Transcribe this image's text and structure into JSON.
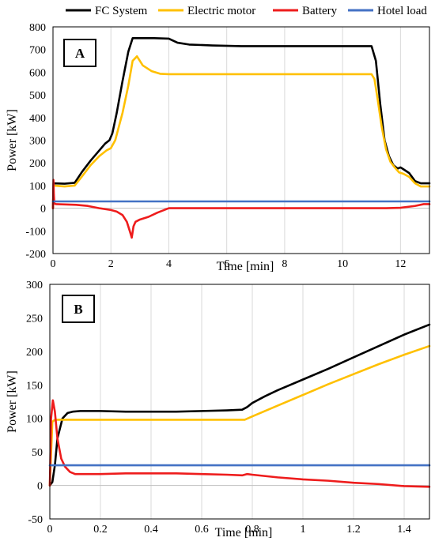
{
  "legend": [
    {
      "name": "FC System",
      "color": "#000000"
    },
    {
      "name": "Electric motor",
      "color": "#FFC000"
    },
    {
      "name": "Battery",
      "color": "#EE1C1C"
    },
    {
      "name": "Hotel load",
      "color": "#4472C4"
    }
  ],
  "chart_data": [
    {
      "type": "line",
      "panel_label": "A",
      "xlabel": "Time [min]",
      "ylabel": "Power [kW]",
      "xlim": [
        0,
        13
      ],
      "ylim": [
        -200,
        800
      ],
      "xticks": [
        0,
        2,
        4,
        6,
        8,
        10,
        12
      ],
      "yticks": [
        -200,
        -100,
        0,
        100,
        200,
        300,
        400,
        500,
        600,
        700,
        800
      ],
      "grid": "vertical",
      "series": [
        {
          "name": "FC System",
          "color": "#000000",
          "x": [
            0,
            0.02,
            0.4,
            0.75,
            1.0,
            1.3,
            1.6,
            1.8,
            1.95,
            2.05,
            2.2,
            2.4,
            2.6,
            2.75,
            2.85,
            3.0,
            3.5,
            4.0,
            4.3,
            4.7,
            5.5,
            6.5,
            8.0,
            9.5,
            10.5,
            11.0,
            11.15,
            11.3,
            11.45,
            11.6,
            11.75,
            11.9,
            12.0,
            12.1,
            12.3,
            12.5,
            12.7,
            13.0
          ],
          "y": [
            0,
            110,
            108,
            112,
            160,
            210,
            255,
            285,
            300,
            330,
            420,
            560,
            690,
            750,
            750,
            750,
            750,
            748,
            730,
            722,
            718,
            715,
            715,
            715,
            715,
            715,
            650,
            460,
            300,
            230,
            190,
            175,
            180,
            172,
            155,
            120,
            110,
            110
          ]
        },
        {
          "name": "Electric motor",
          "color": "#FFC000",
          "x": [
            0,
            0.02,
            0.4,
            0.75,
            1.0,
            1.3,
            1.6,
            1.85,
            2.0,
            2.15,
            2.4,
            2.6,
            2.75,
            2.9,
            3.1,
            3.4,
            3.7,
            4.0,
            6.0,
            8.0,
            10.0,
            11.0,
            11.1,
            11.2,
            11.35,
            11.5,
            11.65,
            11.8,
            11.95,
            12.1,
            12.3,
            12.5,
            12.7,
            13.0
          ],
          "y": [
            0,
            100,
            96,
            100,
            140,
            190,
            230,
            255,
            265,
            300,
            420,
            540,
            650,
            670,
            630,
            605,
            593,
            591,
            591,
            591,
            591,
            591,
            570,
            490,
            360,
            260,
            205,
            180,
            158,
            152,
            138,
            110,
            96,
            96
          ]
        },
        {
          "name": "Battery",
          "color": "#EE1C1C",
          "x": [
            0,
            0.015,
            0.03,
            0.05,
            0.1,
            0.3,
            0.8,
            1.2,
            1.6,
            2.0,
            2.2,
            2.4,
            2.55,
            2.65,
            2.72,
            2.78,
            2.85,
            3.0,
            3.3,
            3.6,
            4.0,
            5.0,
            8.0,
            11.0,
            11.5,
            12.0,
            12.5,
            12.8,
            13.0
          ],
          "y": [
            0,
            125,
            60,
            20,
            18,
            17,
            15,
            10,
            0,
            -8,
            -15,
            -30,
            -60,
            -100,
            -130,
            -80,
            -60,
            -50,
            -38,
            -20,
            0,
            0,
            0,
            0,
            0,
            2,
            10,
            18,
            18
          ]
        },
        {
          "name": "Hotel load",
          "color": "#4472C4",
          "x": [
            0,
            13
          ],
          "y": [
            30,
            30
          ]
        }
      ]
    },
    {
      "type": "line",
      "panel_label": "B",
      "xlabel": "Time [min]",
      "ylabel": "Power [kW]",
      "xlim": [
        0,
        1.5
      ],
      "ylim": [
        -50,
        300
      ],
      "xticks": [
        0,
        0.2,
        0.4,
        0.6,
        0.8,
        1,
        1.2,
        1.4
      ],
      "yticks": [
        -50,
        0,
        50,
        100,
        150,
        200,
        250,
        300
      ],
      "grid": "vertical",
      "series": [
        {
          "name": "FC System",
          "color": "#000000",
          "x": [
            0,
            0.01,
            0.02,
            0.03,
            0.05,
            0.07,
            0.09,
            0.12,
            0.2,
            0.3,
            0.4,
            0.5,
            0.6,
            0.7,
            0.76,
            0.78,
            0.8,
            0.85,
            0.9,
            1.0,
            1.1,
            1.2,
            1.3,
            1.4,
            1.5
          ],
          "y": [
            0,
            5,
            30,
            70,
            100,
            108,
            110,
            111,
            111,
            110,
            110,
            110,
            111,
            112,
            113,
            117,
            123,
            133,
            142,
            158,
            174,
            191,
            208,
            225,
            240
          ]
        },
        {
          "name": "Electric motor",
          "color": "#FFC000",
          "x": [
            0,
            0.01,
            0.02,
            0.1,
            0.3,
            0.5,
            0.7,
            0.77,
            0.8,
            0.9,
            1.0,
            1.1,
            1.2,
            1.3,
            1.4,
            1.5
          ],
          "y": [
            0,
            95,
            98,
            98,
            98,
            98,
            98,
            98,
            103,
            119,
            135,
            151,
            166,
            181,
            195,
            208
          ]
        },
        {
          "name": "Battery",
          "color": "#EE1C1C",
          "x": [
            0,
            0.005,
            0.012,
            0.02,
            0.03,
            0.045,
            0.06,
            0.08,
            0.1,
            0.15,
            0.2,
            0.3,
            0.4,
            0.5,
            0.6,
            0.7,
            0.76,
            0.78,
            0.8,
            0.9,
            1.0,
            1.1,
            1.2,
            1.3,
            1.4,
            1.5
          ],
          "y": [
            0,
            100,
            127,
            110,
            70,
            40,
            28,
            20,
            17,
            17,
            17,
            18,
            18,
            18,
            17,
            16,
            15,
            17,
            16,
            12,
            9,
            7,
            4,
            2,
            -1,
            -2
          ]
        },
        {
          "name": "Hotel load",
          "color": "#4472C4",
          "x": [
            0,
            1.5
          ],
          "y": [
            30,
            30
          ]
        }
      ]
    }
  ]
}
